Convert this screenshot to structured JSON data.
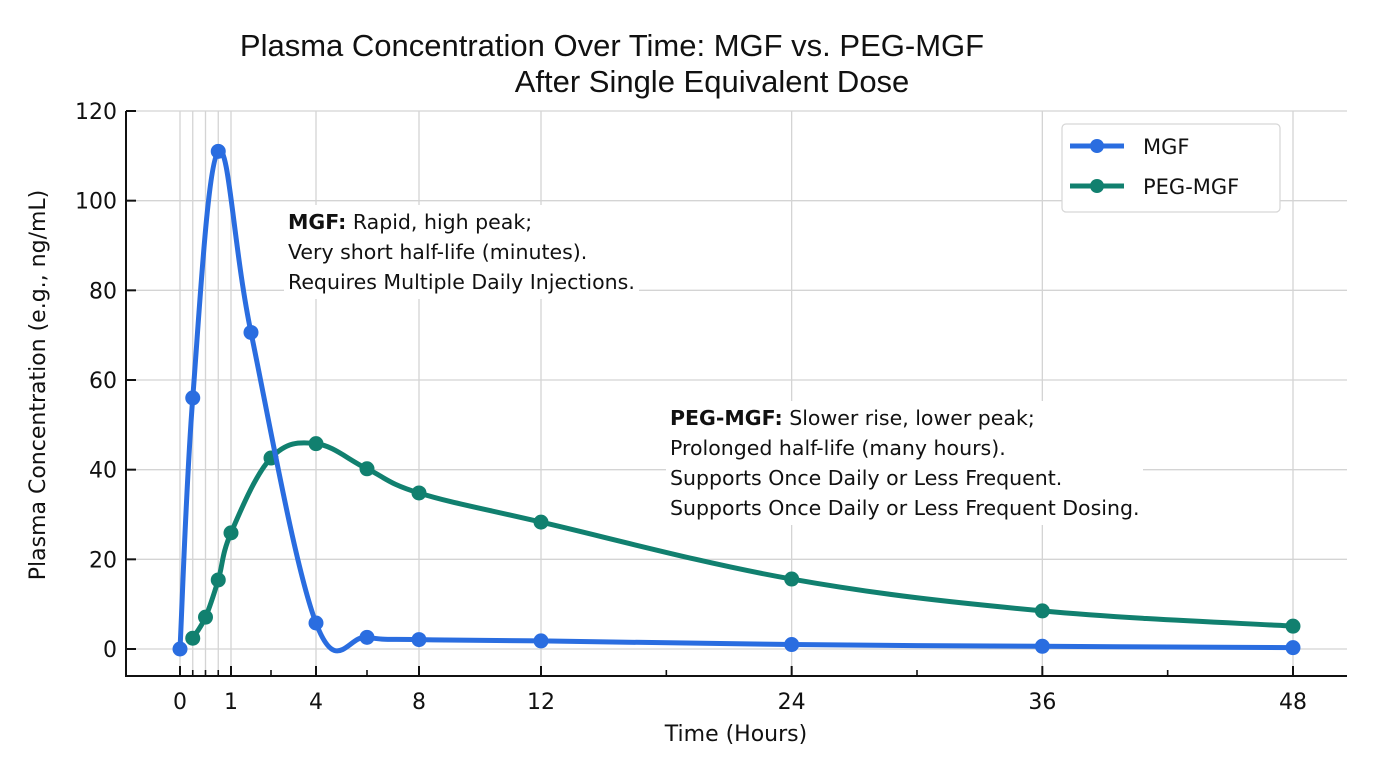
{
  "chart_data": {
    "type": "line",
    "title": "Plasma Concentration Over Time: MGF vs. PEG-MGF",
    "subtitle": "After Single Equivalent Dose",
    "xlabel": "Time (Hours)",
    "ylabel": "Plasma Concentration (e.g., ng/mL)",
    "xlim": [
      0,
      48
    ],
    "ylim": [
      0,
      120
    ],
    "x_scale": "piecewise (expanded 0-1 h, compressed 1-12 h, linear 12-48 h)",
    "x_ticks": [
      0,
      1,
      4,
      8,
      12,
      24,
      36,
      48
    ],
    "x_tick_labels": [
      "0",
      "1",
      "4",
      "8",
      "12",
      "24",
      "36",
      "48"
    ],
    "x_minor_ticks": [
      0.25,
      0.5,
      0.75,
      2,
      6,
      18,
      30,
      42
    ],
    "x_gridlines": [
      0,
      0.25,
      0.5,
      0.75,
      1,
      4,
      8,
      12,
      24,
      36,
      48
    ],
    "y_ticks": [
      0,
      20,
      40,
      60,
      80,
      100,
      120
    ],
    "y_tick_labels": [
      "0",
      "20",
      "40",
      "60",
      "80",
      "100",
      "120"
    ],
    "grid": true,
    "legend_position": "top-right",
    "series": [
      {
        "name": "MGF",
        "color": "#2a6de0",
        "smooth": true,
        "x": [
          0,
          0.25,
          0.75,
          1.5,
          4,
          6,
          8,
          12,
          24,
          36,
          48
        ],
        "y": [
          0,
          56,
          111,
          70.6,
          5.8,
          2.6,
          2.1,
          1.8,
          1.0,
          0.6,
          0.3
        ]
      },
      {
        "name": "PEG-MGF",
        "color": "#11806f",
        "smooth": true,
        "x": [
          0.25,
          0.5,
          0.75,
          1,
          2,
          4,
          6,
          8,
          12,
          24,
          36,
          48
        ],
        "y": [
          2.4,
          7.1,
          15.4,
          25.9,
          42.6,
          45.8,
          40.2,
          34.8,
          28.3,
          15.6,
          8.5,
          5.1
        ]
      }
    ],
    "annotations": [
      {
        "id": "mgf",
        "bold": "MGF:",
        "lines": [
          "Rapid, high peak;",
          "Very short half-life (minutes).",
          "Requires Multiple Daily Injections."
        ]
      },
      {
        "id": "peg",
        "bold": "PEG-MGF:",
        "lines": [
          "Slower rise, lower peak;",
          "Prolonged half-life (many hours).",
          "Supports Once Daily or Less Frequent.",
          "Supports Once Daily or Less Frequent Dosing."
        ]
      }
    ]
  }
}
